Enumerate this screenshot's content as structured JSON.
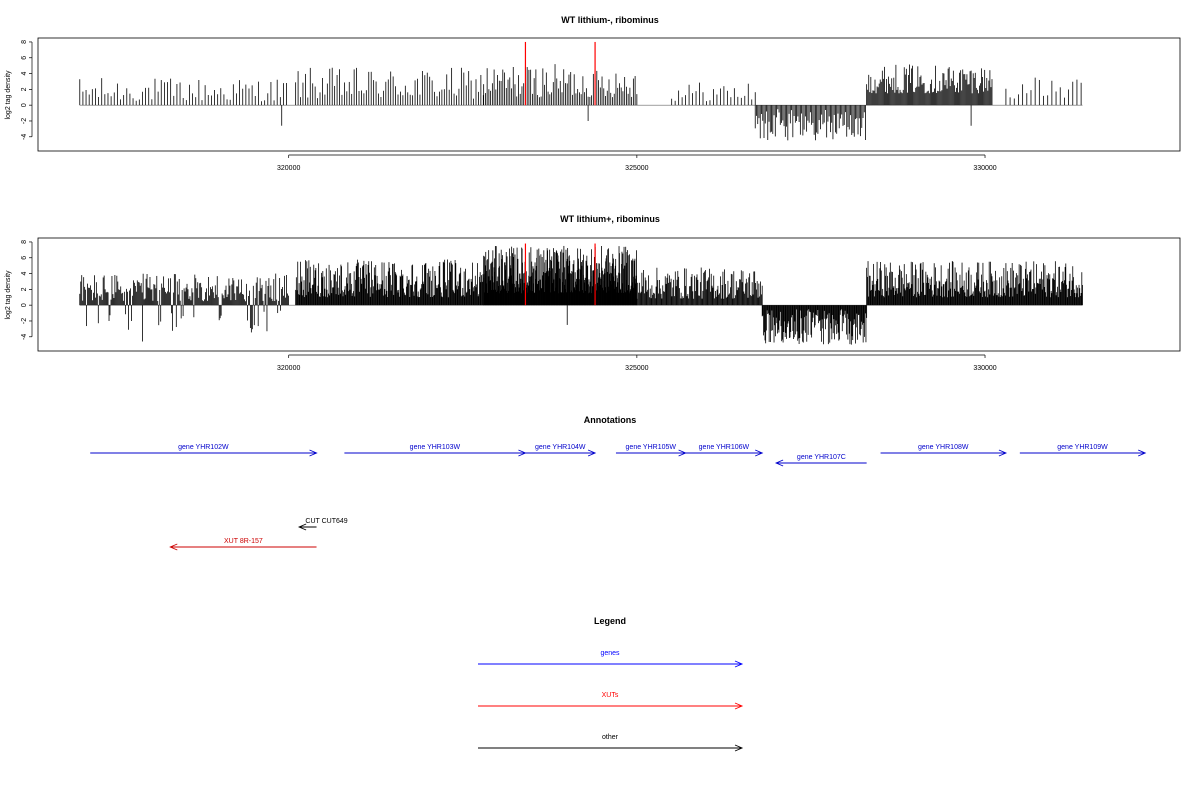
{
  "chart_data": [
    {
      "type": "bar",
      "title": "WT lithium-, ribominus",
      "xlabel": "",
      "ylabel": "log2 tag density",
      "xlim": [
        316400,
        332800
      ],
      "ylim": [
        -5.8,
        8.5
      ],
      "xticks": [
        "320000",
        "325000",
        "330000"
      ],
      "xtick_values": [
        320000,
        325000,
        330000
      ],
      "yticks": [
        "8",
        "6",
        "4",
        "2",
        "0",
        "-2",
        "-4"
      ],
      "ytick_values": [
        8,
        6,
        4,
        2,
        0,
        -2,
        -4
      ],
      "grid": false,
      "regions": [
        {
          "x_start": 317000,
          "x_end": 320000,
          "step": 45,
          "max_pos": 3.5,
          "min_pos": 0.5,
          "neg_max": 0,
          "neg_prob": 0
        },
        {
          "x_start": 320100,
          "x_end": 322800,
          "step": 35,
          "max_pos": 4.8,
          "min_pos": 0.8,
          "neg_max": 0,
          "neg_prob": 0
        },
        {
          "x_start": 322800,
          "x_end": 325000,
          "step": 25,
          "max_pos": 5.2,
          "min_pos": 1.0,
          "neg_max": 0,
          "neg_prob": 0
        },
        {
          "x_start": 325500,
          "x_end": 326700,
          "step": 50,
          "max_pos": 3.0,
          "min_pos": 0.5,
          "neg_max": 0,
          "neg_prob": 0
        },
        {
          "x_start": 326700,
          "x_end": 328300,
          "step": 18,
          "max_pos": 0,
          "min_pos": 0,
          "neg_max": 4.5,
          "neg_prob": 1
        },
        {
          "x_start": 328300,
          "x_end": 330100,
          "step": 15,
          "max_pos": 5.2,
          "min_pos": 1.5,
          "neg_max": 0,
          "neg_prob": 0
        },
        {
          "x_start": 330300,
          "x_end": 331400,
          "step": 60,
          "max_pos": 3.5,
          "min_pos": 0.8,
          "neg_max": 0,
          "neg_prob": 0
        }
      ],
      "outliers": [
        {
          "x": 319900,
          "y": -2.6
        },
        {
          "x": 324300,
          "y": -2.0
        },
        {
          "x": 329800,
          "y": -2.6
        }
      ],
      "highlight_lines": [
        {
          "x": 323400,
          "y": 8.0,
          "color": "#ff0000"
        },
        {
          "x": 324400,
          "y": 8.0,
          "color": "#ff0000"
        }
      ]
    },
    {
      "type": "bar",
      "title": "WT lithium+, ribominus",
      "xlabel": "",
      "ylabel": "log2 tag density",
      "xlim": [
        316400,
        332800
      ],
      "ylim": [
        -5.8,
        8.5
      ],
      "xticks": [
        "320000",
        "325000",
        "330000"
      ],
      "xtick_values": [
        320000,
        325000,
        330000
      ],
      "yticks": [
        "8",
        "6",
        "4",
        "2",
        "0",
        "-2",
        "-4"
      ],
      "ytick_values": [
        8,
        6,
        4,
        2,
        0,
        -2,
        -4
      ],
      "grid": false,
      "regions": [
        {
          "x_start": 317000,
          "x_end": 320000,
          "step": 14,
          "max_pos": 4.0,
          "min_pos": 0.5,
          "neg_max": 3.5,
          "neg_prob": 0.15
        },
        {
          "x_start": 320100,
          "x_end": 322800,
          "step": 10,
          "max_pos": 5.8,
          "min_pos": 1.0,
          "neg_max": 0,
          "neg_prob": 0
        },
        {
          "x_start": 322800,
          "x_end": 325000,
          "step": 6,
          "max_pos": 7.5,
          "min_pos": 1.5,
          "neg_max": 0,
          "neg_prob": 0
        },
        {
          "x_start": 325000,
          "x_end": 326800,
          "step": 12,
          "max_pos": 4.8,
          "min_pos": 0.8,
          "neg_max": 0,
          "neg_prob": 0
        },
        {
          "x_start": 326800,
          "x_end": 328300,
          "step": 10,
          "max_pos": 0,
          "min_pos": 0,
          "neg_max": 5.0,
          "neg_prob": 1
        },
        {
          "x_start": 328300,
          "x_end": 331400,
          "step": 10,
          "max_pos": 5.6,
          "min_pos": 1.0,
          "neg_max": 0,
          "neg_prob": 0
        }
      ],
      "outliers": [
        {
          "x": 324000,
          "y": -2.5
        },
        {
          "x": 317900,
          "y": -4.6
        }
      ],
      "highlight_lines": [
        {
          "x": 323400,
          "y": 7.8,
          "color": "#ff0000"
        },
        {
          "x": 324400,
          "y": 7.8,
          "color": "#ff0000"
        }
      ]
    }
  ],
  "annotations": {
    "title": "Annotations",
    "colors": {
      "gene": "#0000cc",
      "xut": "#cc0000",
      "other": "#000000"
    },
    "features": [
      {
        "label": "gene YHR102W",
        "type": "gene",
        "start": 317150,
        "end": 320400,
        "strand": "+",
        "row": 0
      },
      {
        "label": "gene YHR103W",
        "type": "gene",
        "start": 320800,
        "end": 323400,
        "strand": "+",
        "row": 0
      },
      {
        "label": "gene YHR104W",
        "type": "gene",
        "start": 323400,
        "end": 324400,
        "strand": "+",
        "row": 0
      },
      {
        "label": "gene YHR105W",
        "type": "gene",
        "start": 324700,
        "end": 325700,
        "strand": "+",
        "row": 0
      },
      {
        "label": "gene YHR106W",
        "type": "gene",
        "start": 325700,
        "end": 326800,
        "strand": "+",
        "row": 0
      },
      {
        "label": "gene YHR107C",
        "type": "gene",
        "start": 327000,
        "end": 328300,
        "strand": "-",
        "row": 1
      },
      {
        "label": "gene YHR108W",
        "type": "gene",
        "start": 328500,
        "end": 330300,
        "strand": "+",
        "row": 0
      },
      {
        "label": "gene YHR109W",
        "type": "gene",
        "start": 330500,
        "end": 332300,
        "strand": "+",
        "row": 0
      },
      {
        "label": "CUT CUT649",
        "type": "other",
        "start": 320150,
        "end": 320400,
        "strand": "-",
        "row": 2
      },
      {
        "label": "XUT 8R-157",
        "type": "xut",
        "start": 318300,
        "end": 320400,
        "strand": "-",
        "row": 3
      }
    ]
  },
  "legend": {
    "title": "Legend",
    "entries": [
      {
        "label": "genes",
        "color": "#0000ff"
      },
      {
        "label": "XUTs",
        "color": "#ff0000"
      },
      {
        "label": "other",
        "color": "#000000"
      }
    ]
  }
}
